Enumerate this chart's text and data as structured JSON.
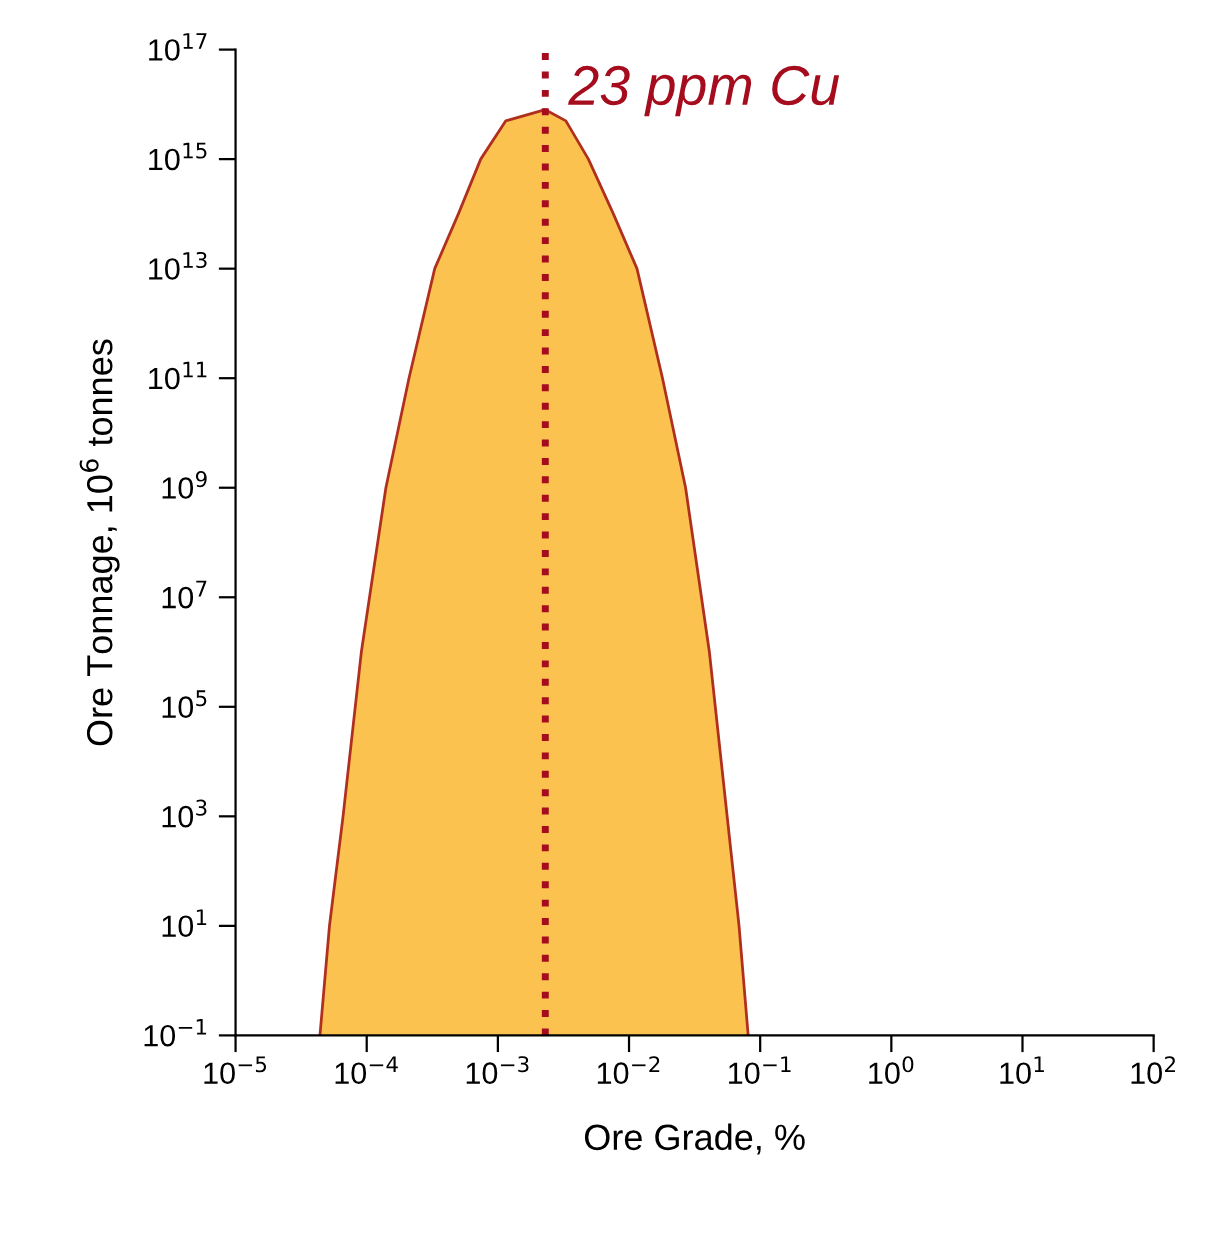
{
  "chart_data": {
    "type": "area",
    "xlabel": "Ore Grade, %",
    "ylabel": "Ore Tonnage, 10$^{6}$ tonnes",
    "log": "xy",
    "x": [
      4.4e-05,
      5.2e-05,
      6.6e-05,
      9.1e-05,
      0.00014,
      0.00021,
      0.00033,
      0.0005,
      0.00074,
      0.00115,
      0.0023,
      0.0033,
      0.0049,
      0.0076,
      0.0115,
      0.018,
      0.027,
      0.041,
      0.056,
      0.069,
      0.081
    ],
    "series": [
      {
        "color": "#fcc24f",
        "values": [
          0.1,
          10,
          1000,
          1000000.0,
          1000000000.0,
          100000000000.0,
          10000000000000.0,
          100000000000000.0,
          1000000000000000.0,
          5000000000000000.0,
          8000000000000000.0,
          5000000000000000.0,
          1000000000000000.0,
          100000000000000.0,
          10000000000000.0,
          100000000000.0,
          1000000000.0,
          1000000.0,
          1000,
          10,
          0.1
        ]
      }
    ],
    "xlim": [
      1e-05,
      100
    ],
    "ylim": [
      0.1,
      1e+17
    ],
    "xticks": [
      {
        "value": 1e-05,
        "label": "10$^{−5}$"
      },
      {
        "value": 0.0001,
        "label": "10$^{−4}$"
      },
      {
        "value": 0.001,
        "label": "10$^{−3}$"
      },
      {
        "value": 0.01,
        "label": "10$^{−2}$"
      },
      {
        "value": 0.1,
        "label": "10$^{−1}$"
      },
      {
        "value": 1,
        "label": "10$^{0}$"
      },
      {
        "value": 10,
        "label": "10$^{1}$"
      },
      {
        "value": 100,
        "label": "10$^{2}$"
      }
    ],
    "yticks": [
      {
        "value": 0.1,
        "label": "10$^{−1}$"
      },
      {
        "value": 10,
        "label": "10$^{1}$"
      },
      {
        "value": 1000,
        "label": "10$^{3}$"
      },
      {
        "value": 100000.0,
        "label": "10$^{5}$"
      },
      {
        "value": 10000000.0,
        "label": "10$^{7}$"
      },
      {
        "value": 1000000000.0,
        "label": "10$^{9}$"
      },
      {
        "value": 100000000000.0,
        "label": "10$^{11}$"
      },
      {
        "value": 10000000000000.0,
        "label": "10$^{13}$"
      },
      {
        "value": 1000000000000000.0,
        "label": "10$^{15}$"
      },
      {
        "value": 1e+17,
        "label": "10$^{17}$"
      }
    ],
    "ref_lines": [
      {
        "axis": "x",
        "value": 0.0023,
        "label": "23 ppm Cu",
        "color": "#a50d1e",
        "line_style": "dotted"
      }
    ],
    "grid": false
  }
}
